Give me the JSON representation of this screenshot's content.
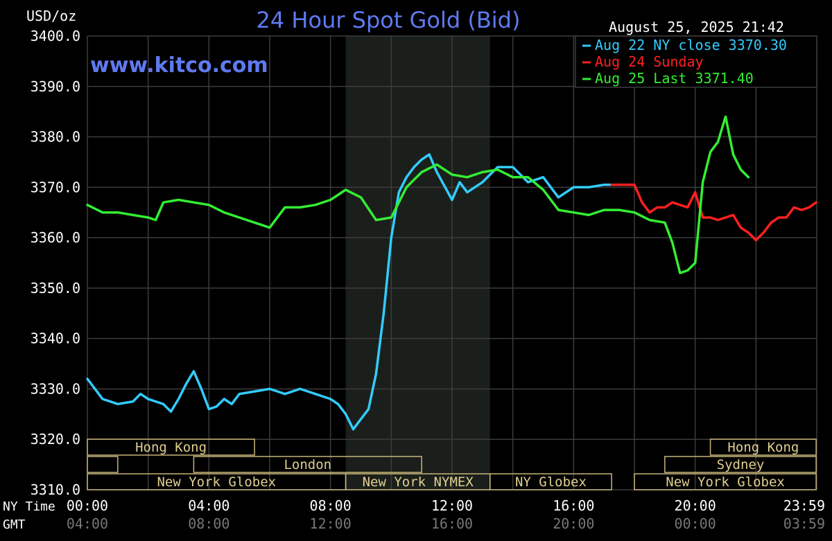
{
  "chart_data": {
    "type": "line",
    "title": "24 Hour Spot Gold (Bid)",
    "ylabel": "USD/oz",
    "timestamp": "August 25, 2025 21:42",
    "watermark": "www.kitco.com",
    "ylim": [
      3310,
      3400
    ],
    "xlim": [
      0,
      24
    ],
    "grid": true,
    "legend_position": "top-right",
    "shaded_interval_hours": [
      8.5,
      13.25
    ],
    "y_ticks": [
      "3400.0",
      "3390.0",
      "3380.0",
      "3370.0",
      "3360.0",
      "3350.0",
      "3340.0",
      "3330.0",
      "3320.0",
      "3310.0"
    ],
    "x_axis_rows": [
      {
        "label": "NY Time",
        "ticks": [
          "00:00",
          "04:00",
          "08:00",
          "12:00",
          "16:00",
          "20:00",
          "23:59"
        ]
      },
      {
        "label": "GMT",
        "ticks": [
          "04:00",
          "08:00",
          "12:00",
          "16:00",
          "20:00",
          "00:00",
          "03:59"
        ]
      }
    ],
    "series": [
      {
        "name": "Aug 22 NY close 3370.30",
        "color": "#33ccff",
        "x": [
          0,
          0.25,
          0.5,
          0.75,
          1.0,
          1.5,
          1.75,
          2.0,
          2.5,
          2.75,
          3.0,
          3.25,
          3.5,
          3.75,
          4.0,
          4.25,
          4.5,
          4.75,
          5.0,
          5.5,
          6.0,
          6.5,
          7.0,
          7.5,
          8.0,
          8.25,
          8.5,
          8.75,
          9.0,
          9.25,
          9.5,
          9.75,
          10.0,
          10.25,
          10.5,
          10.75,
          11.0,
          11.25,
          11.5,
          12.0,
          12.25,
          12.5,
          12.75,
          13.0,
          13.5,
          14.0,
          14.5,
          15.0,
          15.5,
          16.0,
          16.5,
          17.0,
          17.25
        ],
        "values": [
          3332,
          3330,
          3328,
          3327.5,
          3327,
          3327.5,
          3329,
          3328,
          3327,
          3325.5,
          3328,
          3331,
          3333.5,
          3330,
          3326,
          3326.5,
          3328,
          3327,
          3329,
          3329.5,
          3330,
          3329,
          3330,
          3329,
          3328,
          3327,
          3325,
          3322,
          3324,
          3326,
          3333,
          3345,
          3360,
          3369,
          3372,
          3374,
          3375.5,
          3376.5,
          3373,
          3367.5,
          3371,
          3369,
          3370,
          3371,
          3374,
          3374,
          3371,
          3372,
          3368,
          3370,
          3370,
          3370.5,
          3370.5
        ]
      },
      {
        "name": "Aug 24 Sunday",
        "color": "#ff2020",
        "x": [
          17.25,
          17.5,
          18.0,
          18.25,
          18.5,
          18.75,
          19.0,
          19.25,
          19.5,
          19.75,
          20.0,
          20.25,
          20.5,
          20.75,
          21.0,
          21.25,
          21.5,
          21.75,
          22.0,
          22.25,
          22.5,
          22.75,
          23.0,
          23.25,
          23.5,
          23.75,
          23.98
        ],
        "values": [
          3370.5,
          3370.5,
          3370.5,
          3367,
          3365,
          3366,
          3366,
          3367,
          3366.5,
          3366,
          3369,
          3364,
          3364,
          3363.5,
          3364,
          3364.5,
          3362,
          3361,
          3359.5,
          3361,
          3363,
          3364,
          3364,
          3366,
          3365.5,
          3366,
          3367
        ]
      },
      {
        "name": "Aug 25 Last 3371.40",
        "color": "#33ee33",
        "x": [
          0,
          0.5,
          1.0,
          1.5,
          2.0,
          2.25,
          2.5,
          3.0,
          3.5,
          4.0,
          4.5,
          5.0,
          5.5,
          6.0,
          6.5,
          7.0,
          7.5,
          8.0,
          8.5,
          9.0,
          9.5,
          10.0,
          10.5,
          11.0,
          11.5,
          12.0,
          12.5,
          13.0,
          13.5,
          14.0,
          14.5,
          15.0,
          15.5,
          16.0,
          16.5,
          17.0,
          17.5,
          18.0,
          18.5,
          19.0,
          19.25,
          19.5,
          19.75,
          20.0,
          20.25,
          20.5,
          20.75,
          21.0,
          21.25,
          21.5,
          21.75
        ],
        "values": [
          3366.5,
          3365,
          3365,
          3364.5,
          3364,
          3363.5,
          3367,
          3367.5,
          3367,
          3366.5,
          3365,
          3364,
          3363,
          3362,
          3366,
          3366,
          3366.5,
          3367.5,
          3369.5,
          3368,
          3363.5,
          3364,
          3370,
          3373,
          3374.5,
          3372.5,
          3372,
          3373,
          3373.5,
          3372,
          3372,
          3369.5,
          3365.5,
          3365,
          3364.5,
          3365.5,
          3365.5,
          3365,
          3363.5,
          3363,
          3359,
          3353,
          3353.5,
          3355,
          3371,
          3377,
          3379,
          3384,
          3376.5,
          3373.5,
          3372
        ]
      }
    ],
    "sessions": [
      {
        "label": "Hong Kong",
        "row": 0,
        "start": 0,
        "end": 5.5
      },
      {
        "label": "",
        "row": 1,
        "start": 0,
        "end": 1.0
      },
      {
        "label": "London",
        "row": 1,
        "start": 3.5,
        "end": 11.0
      },
      {
        "label": "New York Globex",
        "row": 2,
        "start": 0,
        "end": 8.5
      },
      {
        "label": "New York NYMEX",
        "row": 2,
        "start": 8.5,
        "end": 13.25
      },
      {
        "label": "NY Globex",
        "row": 2,
        "start": 13.25,
        "end": 17.25
      },
      {
        "label": "Hong Kong",
        "row": 0,
        "start": 20.5,
        "end": 23.98
      },
      {
        "label": "Sydney",
        "row": 1,
        "start": 19.0,
        "end": 23.98
      },
      {
        "label": "New York Globex",
        "row": 2,
        "start": 18.0,
        "end": 23.98
      }
    ]
  }
}
